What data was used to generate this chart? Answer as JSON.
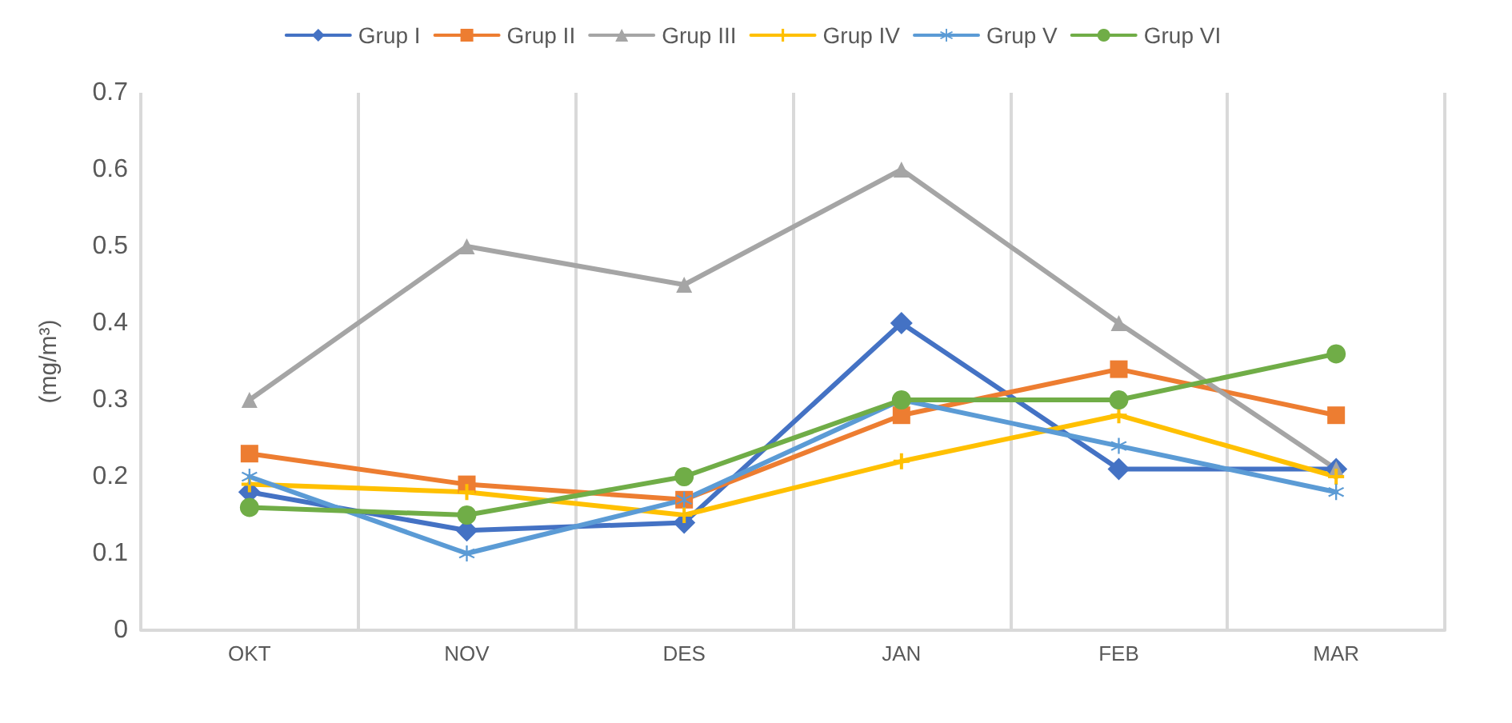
{
  "chart_data": {
    "type": "line",
    "ylabel": "(mg/m³)",
    "categories": [
      "OKT",
      "NOV",
      "DES",
      "JAN",
      "FEB",
      "MAR"
    ],
    "series": [
      {
        "name": "Grup I",
        "color": "#4472c4",
        "marker": "diamond",
        "values": [
          0.18,
          0.13,
          0.14,
          0.4,
          0.21,
          0.21
        ]
      },
      {
        "name": "Grup II",
        "color": "#ed7d31",
        "marker": "square",
        "values": [
          0.23,
          0.19,
          0.17,
          0.28,
          0.34,
          0.28
        ]
      },
      {
        "name": "Grup III",
        "color": "#a5a5a5",
        "marker": "triangle",
        "values": [
          0.3,
          0.5,
          0.45,
          0.6,
          0.4,
          0.21
        ]
      },
      {
        "name": "Grup IV",
        "color": "#ffc000",
        "marker": "cross",
        "values": [
          0.19,
          0.18,
          0.15,
          0.22,
          0.28,
          0.2
        ]
      },
      {
        "name": "Grup V",
        "color": "#5b9bd5",
        "marker": "star",
        "values": [
          0.2,
          0.1,
          0.17,
          0.3,
          0.24,
          0.18
        ]
      },
      {
        "name": "Grup VI",
        "color": "#70ad47",
        "marker": "circle",
        "values": [
          0.16,
          0.15,
          0.2,
          0.3,
          0.3,
          0.36
        ]
      }
    ],
    "ylim": [
      0,
      0.7
    ],
    "yticks": [
      0,
      0.1,
      0.2,
      0.3,
      0.4,
      0.5,
      0.6,
      0.7
    ],
    "grid": "x",
    "legend": "top"
  }
}
